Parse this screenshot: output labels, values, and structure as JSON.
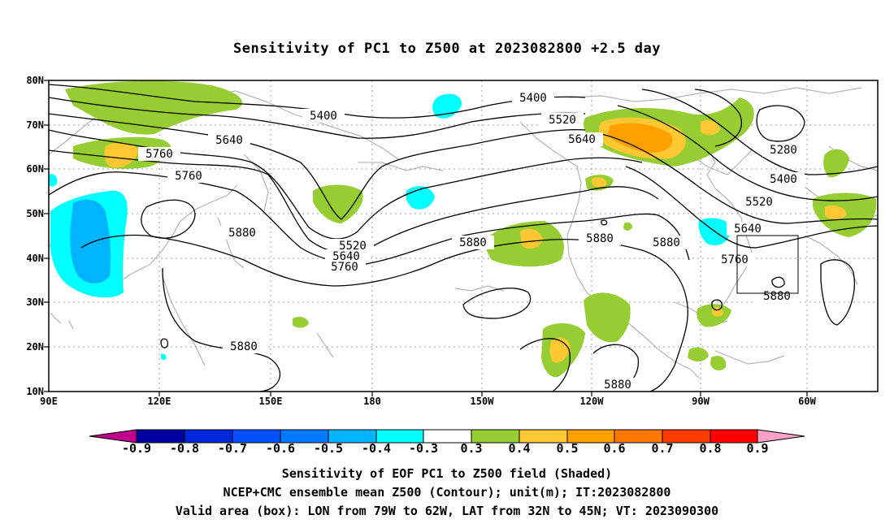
{
  "figure": {
    "title": "Sensitivity of PC1 to Z500 at 2023082800 +2.5 day",
    "lat_labels": [
      "80N",
      "70N",
      "60N",
      "50N",
      "40N",
      "30N",
      "20N",
      "10N"
    ],
    "lon_labels": [
      "90E",
      "120E",
      "150E",
      "180",
      "150W",
      "120W",
      "90W",
      "60W"
    ],
    "contour_labels": [
      "5400",
      "5400",
      "5520",
      "5640",
      "5640",
      "5760",
      "5760",
      "5280",
      "5400",
      "5520",
      "5640",
      "5760",
      "5880",
      "5880",
      "5880",
      "5880",
      "5880",
      "5880",
      "5880",
      "5520",
      "5640",
      "5760"
    ],
    "colorbar": {
      "colors": [
        "#c0008c",
        "#0000a0",
        "#0028dc",
        "#0050ff",
        "#0078ff",
        "#00b4ff",
        "#00ffff",
        "#ffffff",
        "#96cd32",
        "#ffc832",
        "#ffa000",
        "#ff7800",
        "#ff3c00",
        "#ff0000",
        "#ffa0c8"
      ],
      "labels": [
        "-0.9",
        "-0.8",
        "-0.7",
        "-0.6",
        "-0.5",
        "-0.4",
        "-0.3",
        "0.3",
        "0.4",
        "0.5",
        "0.6",
        "0.7",
        "0.8",
        "0.9"
      ]
    },
    "captions": [
      "Sensitivity of EOF PC1 to Z500 field (Shaded)",
      "NCEP+CMC ensemble mean Z500 (Contour); unit(m); IT:2023082800",
      "Valid area (box): LON from 79W to 62W, LAT from 32N to 45N; VT: 2023090300"
    ]
  },
  "chart_data": {
    "type": "map",
    "projection": "cylindrical equidistant",
    "lon_range": [
      "90E",
      "50W"
    ],
    "lat_range": [
      "10N",
      "80N"
    ],
    "grid": true,
    "contour_variable": "Z500 ensemble mean (m)",
    "contour_levels": [
      5280,
      5400,
      5520,
      5640,
      5760,
      5880
    ],
    "shaded_variable": "Sensitivity of EOF PC1 to Z500",
    "shading_levels": [
      -0.9,
      -0.8,
      -0.7,
      -0.6,
      -0.5,
      -0.4,
      -0.3,
      0.3,
      0.4,
      0.5,
      0.6,
      0.7,
      0.8,
      0.9
    ],
    "valid_box": {
      "lon_min": "79W",
      "lon_max": "62W",
      "lat_min": "32N",
      "lat_max": "45N"
    },
    "init_time": "2023082800",
    "valid_time": "2023090300"
  }
}
